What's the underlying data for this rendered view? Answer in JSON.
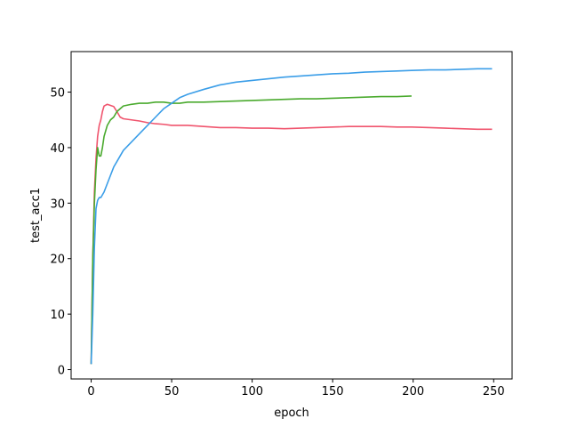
{
  "chart_data": {
    "type": "line",
    "x_label": "epoch",
    "y_label": "test_acc1",
    "x": [
      0,
      1,
      2,
      3,
      4,
      5,
      6,
      7,
      8,
      10,
      12,
      14,
      16,
      18,
      20,
      25,
      30,
      35,
      40,
      45,
      50,
      55,
      60,
      70,
      80,
      90,
      100,
      110,
      120,
      130,
      140,
      150,
      160,
      170,
      180,
      190,
      199,
      210,
      220,
      230,
      240,
      249
    ],
    "series": [
      {
        "color": "#f0556e",
        "values": [
          1,
          20,
          32,
          38,
          42,
          44,
          45,
          46.5,
          47.5,
          47.8,
          47.6,
          47.4,
          46.5,
          45.5,
          45.2,
          45,
          44.8,
          44.5,
          44.3,
          44.2,
          44,
          44,
          44,
          43.8,
          43.6,
          43.6,
          43.5,
          43.5,
          43.4,
          43.5,
          43.6,
          43.7,
          43.8,
          43.8,
          43.8,
          43.7,
          43.7,
          43.6,
          43.5,
          43.4,
          43.3,
          43.3
        ]
      },
      {
        "color": "#4aaa2e",
        "values": [
          1,
          20,
          30,
          36,
          40,
          38.5,
          38.5,
          40,
          42,
          44,
          45,
          45.5,
          46.5,
          47,
          47.5,
          47.8,
          48,
          48,
          48.2,
          48.2,
          48,
          48,
          48.2,
          48.2,
          48.3,
          48.4,
          48.5,
          48.6,
          48.7,
          48.8,
          48.8,
          48.9,
          49,
          49.1,
          49.2,
          49.2,
          49.3,
          null,
          null,
          null,
          null,
          null
        ]
      },
      {
        "color": "#3b9ee8",
        "values": [
          1,
          10,
          22,
          29,
          30.5,
          31,
          31,
          31.5,
          32,
          33.5,
          35,
          36.5,
          37.5,
          38.5,
          39.5,
          41,
          42.5,
          44,
          45.5,
          47,
          48,
          49,
          49.6,
          50.5,
          51.3,
          51.8,
          52.1,
          52.4,
          52.7,
          52.9,
          53.1,
          53.3,
          53.4,
          53.6,
          53.7,
          53.8,
          53.9,
          54,
          54,
          54.1,
          54.2,
          54.2
        ]
      }
    ],
    "xlim": [
      -12.45,
      261.45
    ],
    "ylim": [
      -1.68,
      57.3
    ],
    "xticks": [
      0,
      50,
      100,
      150,
      200,
      250
    ],
    "yticks": [
      0,
      10,
      20,
      30,
      40,
      50
    ]
  }
}
